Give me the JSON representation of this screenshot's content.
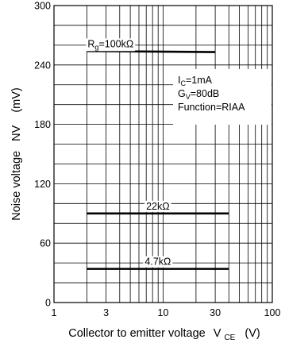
{
  "chart_data": {
    "type": "line",
    "xscale": "log",
    "xlim": [
      1,
      100
    ],
    "ylim": [
      0,
      300
    ],
    "xticks": [
      1,
      3,
      10,
      30,
      100
    ],
    "xtick_labels": [
      "1",
      "3",
      "10",
      "30",
      "100"
    ],
    "yticks": [
      0,
      60,
      120,
      180,
      240,
      300
    ],
    "ytick_labels": [
      "0",
      "60",
      "120",
      "180",
      "240",
      "300"
    ],
    "grid": true,
    "xlabel": {
      "main": "Collector to emitter voltage",
      "symbol": "V",
      "subscript": "CE",
      "unit": "(V)"
    },
    "ylabel": {
      "main": "Noise voltage",
      "symbol": "NV",
      "unit": "(mV)"
    },
    "conditions": [
      {
        "main": "I",
        "sub": "C",
        "rest": "=1mA"
      },
      {
        "main": "G",
        "sub": "V",
        "rest": "=80dB"
      },
      {
        "main": "Function=RIAA",
        "sub": "",
        "rest": ""
      }
    ],
    "series": [
      {
        "label_main": "R",
        "label_sub": "g",
        "label_rest": "=100kΩ",
        "x": [
          2,
          30
        ],
        "y": [
          254,
          253
        ]
      },
      {
        "label_main": "22kΩ",
        "label_sub": "",
        "label_rest": "",
        "x": [
          2,
          40
        ],
        "y": [
          90,
          90
        ]
      },
      {
        "label_main": "4.7kΩ",
        "label_sub": "",
        "label_rest": "",
        "x": [
          2,
          40
        ],
        "y": [
          34,
          34
        ]
      }
    ]
  }
}
